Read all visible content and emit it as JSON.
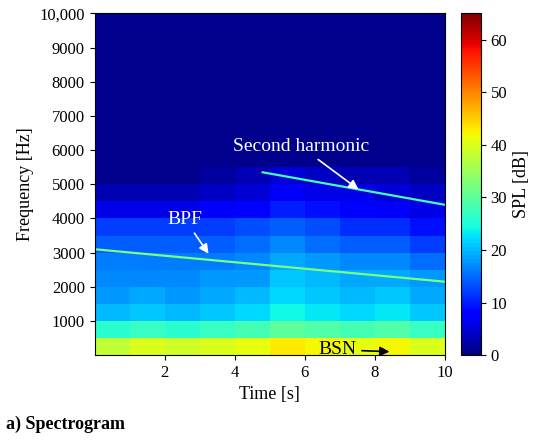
{
  "chart_data": {
    "type": "heatmap",
    "caption": "a) Spectrogram",
    "x_label": "Time [s]",
    "y_label": "Frequency [Hz]",
    "colorbar_label": "SPL [dB]",
    "xlim": [
      0,
      10
    ],
    "ylim": [
      0,
      10000
    ],
    "xticks": [
      2,
      4,
      6,
      8,
      10
    ],
    "yticks": [
      1000,
      2000,
      3000,
      4000,
      5000,
      6000,
      7000,
      8000,
      9000,
      {
        "value": 10000,
        "label": "10,000"
      }
    ],
    "color_range": [
      0,
      65
    ],
    "color_ticks": [
      0,
      10,
      20,
      30,
      40,
      50,
      60
    ],
    "time_edges": [
      0,
      1,
      2,
      3,
      4,
      5,
      6,
      7,
      8,
      9,
      10
    ],
    "frequency_edges": [
      0,
      500,
      1000,
      1500,
      2000,
      2500,
      3000,
      3500,
      4000,
      4500,
      5000,
      5500,
      6000,
      6500,
      7000,
      7500,
      8000,
      8500,
      9000,
      9500,
      10000
    ],
    "cells": [
      [
        38,
        40,
        39,
        40,
        41,
        43,
        42,
        41,
        42,
        40
      ],
      [
        26,
        27,
        26,
        27,
        28,
        30,
        29,
        28,
        29,
        27
      ],
      [
        20,
        21,
        20,
        21,
        22,
        24,
        23,
        22,
        23,
        21
      ],
      [
        18,
        19,
        18,
        19,
        20,
        22,
        21,
        20,
        21,
        19
      ],
      [
        17,
        17,
        17,
        18,
        18,
        21,
        20,
        19,
        19,
        18
      ],
      [
        16,
        16,
        16,
        16,
        17,
        19,
        18,
        17,
        17,
        15
      ],
      [
        14,
        14,
        14,
        14,
        15,
        17,
        15,
        14,
        14,
        12
      ],
      [
        12,
        12,
        12,
        12,
        13,
        14,
        13,
        11,
        11,
        9
      ],
      [
        6,
        6,
        6,
        7,
        8,
        10,
        9,
        8,
        7,
        6
      ],
      [
        3,
        3,
        3,
        4,
        5,
        7,
        6,
        6,
        5,
        4
      ],
      [
        1,
        1,
        1,
        2,
        3,
        5,
        4,
        3,
        3,
        2
      ],
      [
        1,
        1,
        1,
        1,
        1,
        1,
        1,
        1,
        1,
        1
      ],
      [
        1,
        1,
        1,
        1,
        1,
        1,
        1,
        1,
        1,
        1
      ],
      [
        1,
        1,
        1,
        1,
        1,
        1,
        1,
        1,
        1,
        1
      ],
      [
        1,
        1,
        1,
        1,
        1,
        1,
        1,
        1,
        1,
        1
      ],
      [
        1,
        1,
        1,
        1,
        1,
        1,
        1,
        1,
        1,
        1
      ],
      [
        1,
        1,
        1,
        1,
        1,
        1,
        1,
        1,
        1,
        1
      ],
      [
        1,
        1,
        1,
        1,
        1,
        1,
        1,
        1,
        1,
        1
      ],
      [
        1,
        1,
        1,
        1,
        1,
        1,
        1,
        1,
        1,
        1
      ],
      [
        1,
        1,
        1,
        1,
        1,
        1,
        1,
        1,
        1,
        1
      ]
    ],
    "tones": [
      {
        "x": [
          0,
          10
        ],
        "y": [
          3100,
          2150
        ],
        "level": 32
      },
      {
        "x": [
          4.8,
          10
        ],
        "y": [
          5350,
          4400
        ],
        "level": 28
      }
    ],
    "annotations": [
      {
        "text": "BPF",
        "x": 3.3,
        "y": 2900,
        "color": "white"
      },
      {
        "text": "Second harmonic",
        "x": 7.6,
        "y": 4800,
        "color": "white"
      },
      {
        "text": "BSN",
        "x": 8.5,
        "y": 100,
        "color": "black"
      }
    ]
  }
}
